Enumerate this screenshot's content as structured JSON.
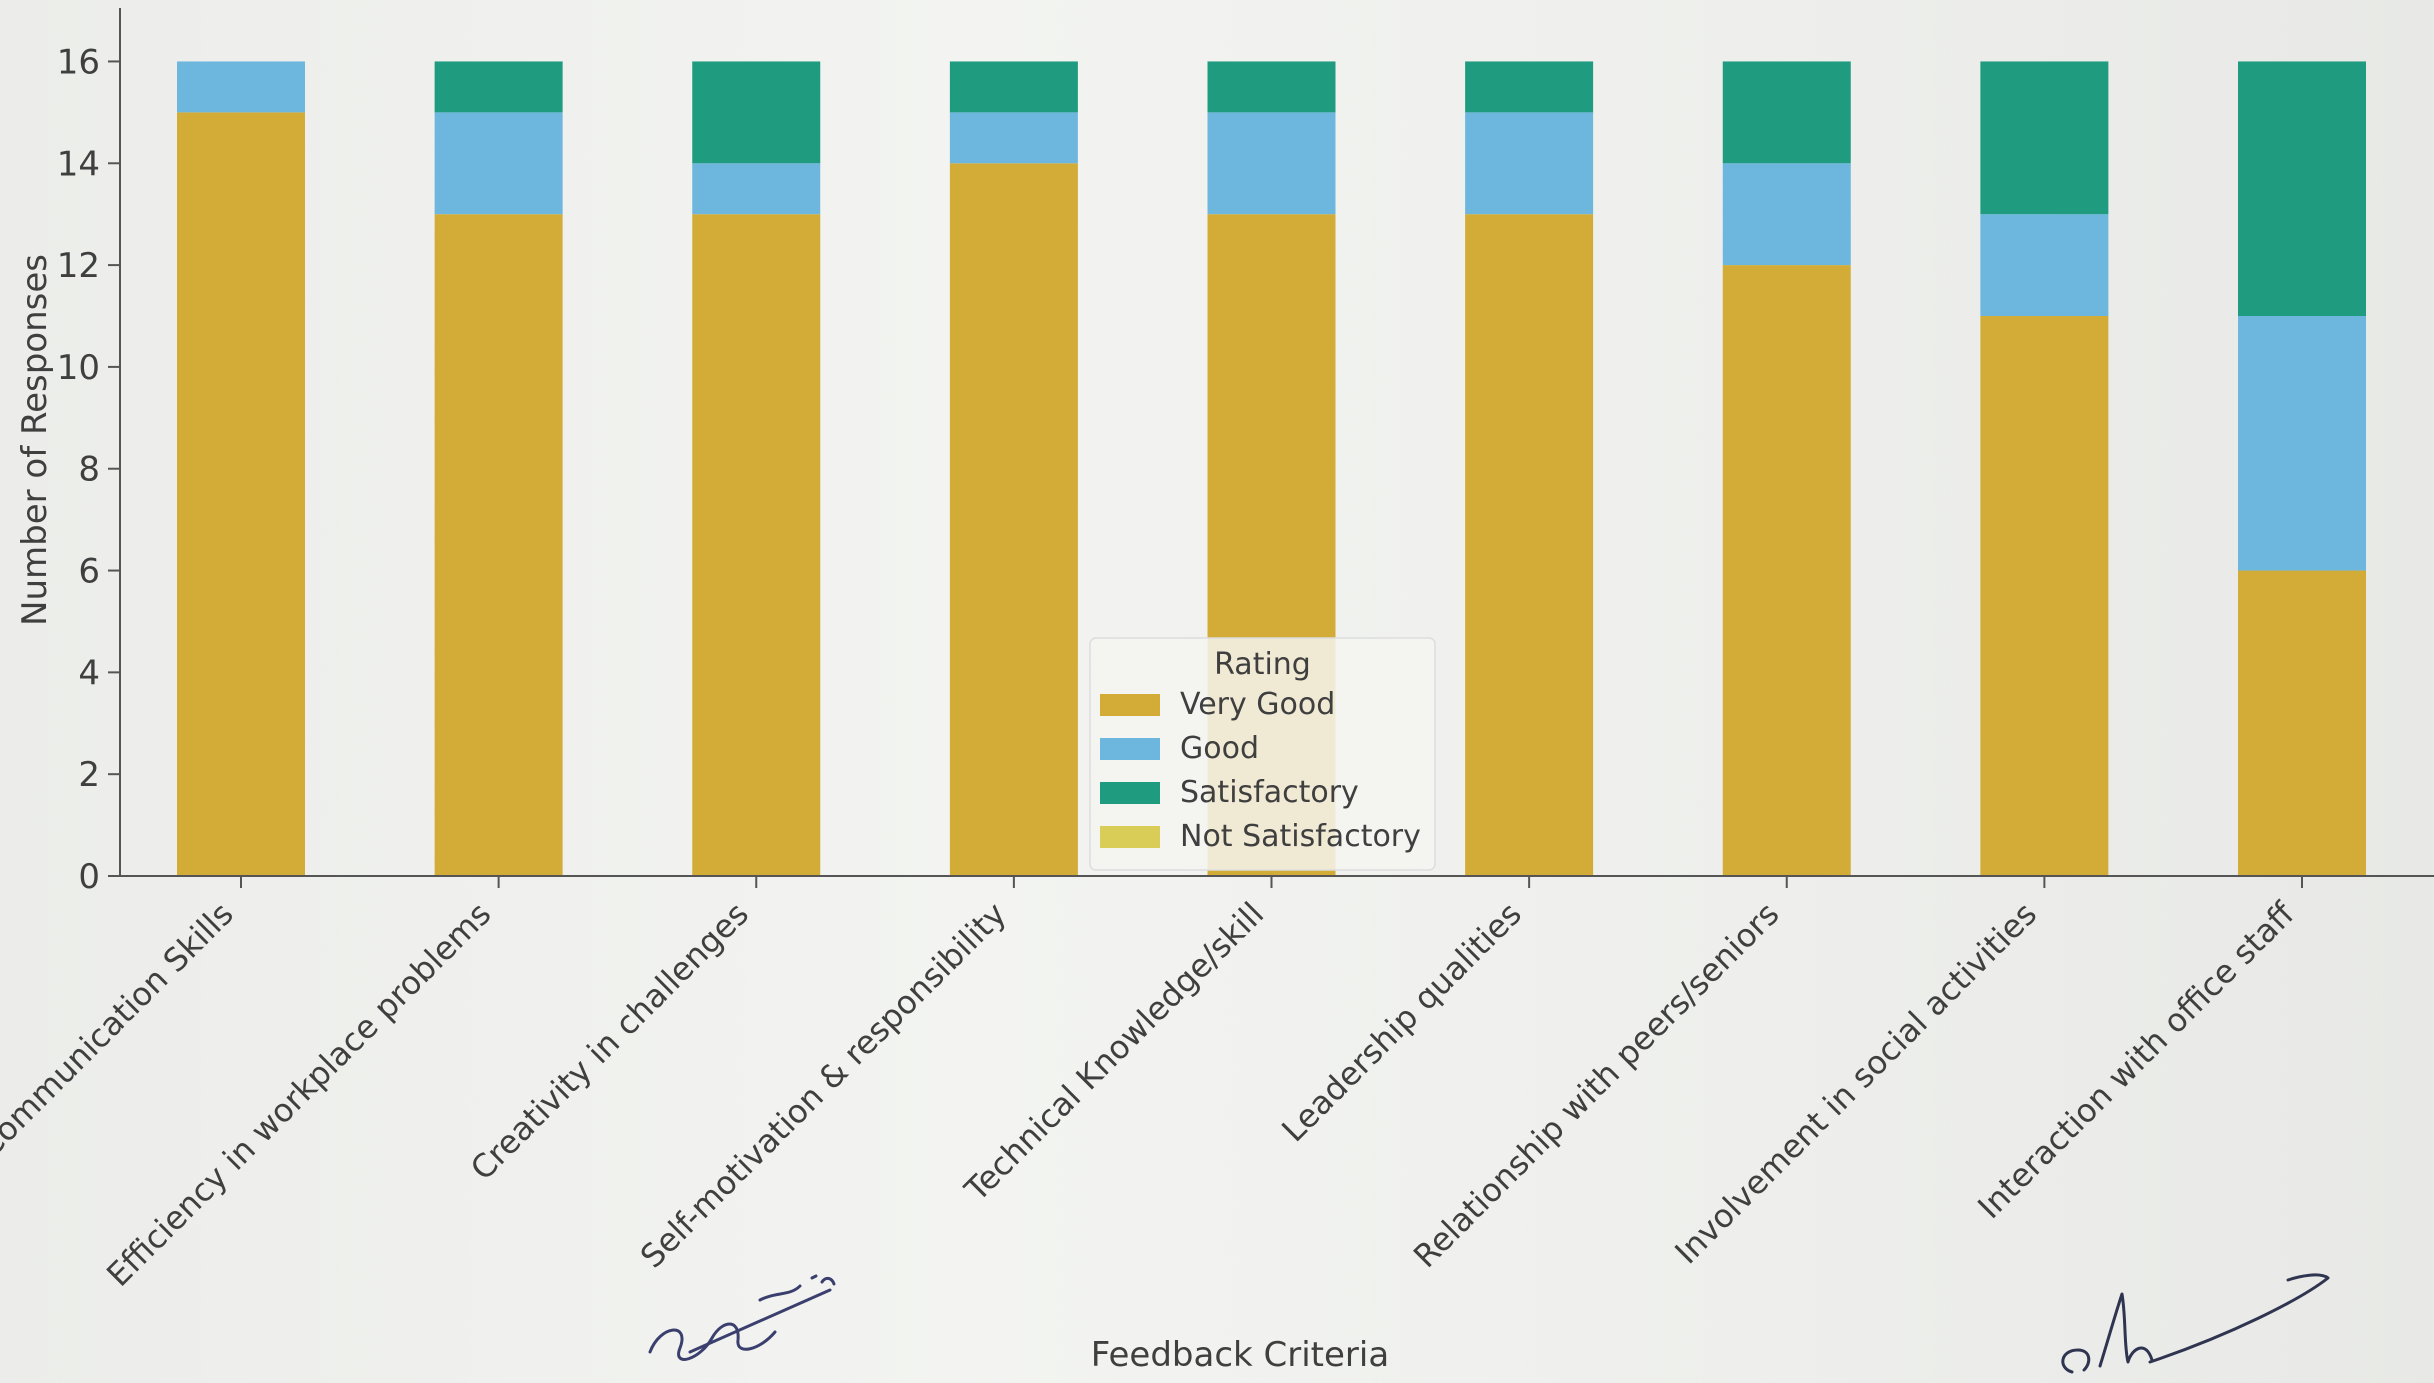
{
  "chart_data": {
    "type": "bar",
    "stacked": true,
    "title": "",
    "xlabel": "Feedback Criteria",
    "ylabel": "Number of Responses",
    "ylim": [
      0,
      16.5
    ],
    "yticks": [
      0,
      2,
      4,
      6,
      8,
      10,
      12,
      14,
      16
    ],
    "grid": false,
    "legend": {
      "title": "Rating",
      "placement": "center-bottom"
    },
    "categories": [
      "Communication Skills",
      "Efficiency in workplace problems",
      "Creativity in challenges",
      "Self-motivation & responsibility",
      "Technical Knowledge/skill",
      "Leadership qualities",
      "Relationship with peers/seniors",
      "Involvement in social activities",
      "Interaction with office staff"
    ],
    "series": [
      {
        "name": "Very Good",
        "color": "#d3ac37",
        "values": [
          15,
          13,
          13,
          14,
          13,
          13,
          12,
          11,
          6
        ]
      },
      {
        "name": "Good",
        "color": "#6db6dd",
        "values": [
          1,
          2,
          1,
          1,
          2,
          2,
          2,
          2,
          5
        ]
      },
      {
        "name": "Satisfactory",
        "color": "#1f9c7f",
        "values": [
          0,
          1,
          2,
          1,
          1,
          1,
          2,
          3,
          5
        ]
      },
      {
        "name": "Not Satisfactory",
        "color": "#d9cc57",
        "values": [
          0,
          0,
          0,
          0,
          0,
          0,
          0,
          0,
          0
        ]
      }
    ]
  },
  "signatures": [
    "signature-left",
    "signature-right"
  ]
}
